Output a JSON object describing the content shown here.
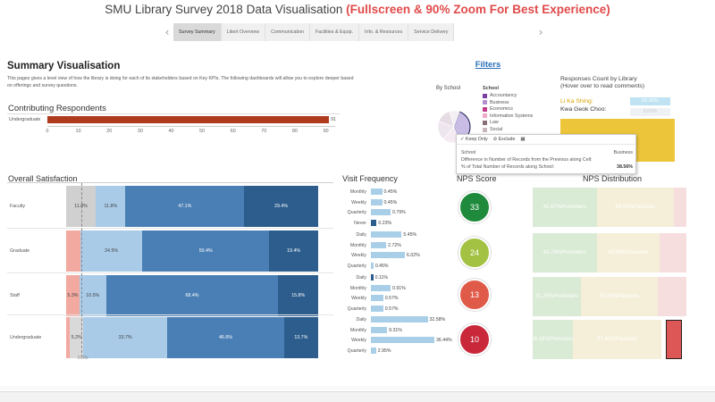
{
  "title": {
    "main": "SMU Library Survey 2018 Data Visualisation",
    "highlight": "(Fullscreen & 90% Zoom For Best Experience)"
  },
  "tabs": [
    {
      "label": "Survey Summary",
      "active": true
    },
    {
      "label": "Likert Overview",
      "active": false
    },
    {
      "label": "Communication",
      "active": false
    },
    {
      "label": "Facilities & Equip.",
      "active": false
    },
    {
      "label": "Info. & Resources",
      "active": false
    },
    {
      "label": "Service Delivery",
      "active": false
    }
  ],
  "nav": {
    "prev": "‹",
    "next": "›"
  },
  "summary": {
    "title": "Summary Visualisation",
    "description": "This pages gives a level view of how the library is doing for each of its stakeholders based on Key KPIs. The following dashboards will allow you to explore deeper based on offerings and survey questions."
  },
  "filters_label": "Filters",
  "by_school": {
    "label": "By School",
    "legend_title": "School",
    "legend": [
      {
        "name": "Accountancy",
        "color": "#7a3fa0"
      },
      {
        "name": "Business",
        "color": "#b48fd0"
      },
      {
        "name": "Economics",
        "color": "#c03a8a"
      },
      {
        "name": "Information Systems",
        "color": "#f0a9c8"
      },
      {
        "name": "Law",
        "color": "#8a6d78"
      },
      {
        "name": "Social",
        "color": "#c9b6bd"
      }
    ]
  },
  "responses": {
    "title": "Responses Count by Library",
    "subtitle": "(Hover over to read comments)",
    "names": [
      "Li Ka Shing:",
      "Kwa Geok Choo:"
    ],
    "values": [
      "62.00%",
      "8.00%"
    ]
  },
  "tooltip": {
    "keep_only": "✓ Keep Only",
    "exclude": "⊘ Exclude",
    "grid_icon": "▦",
    "rows": [
      {
        "label": "School",
        "value": "Business"
      },
      {
        "label": "Difference in Number of Records from the Previous along Cell:",
        "value": ""
      },
      {
        "label": "% of Total Number of Records along School:",
        "value": "38.56%"
      }
    ]
  },
  "sections": {
    "contributing": "Contributing Respondents",
    "overall": "Overall Satisfaction",
    "visit": "Visit Frequency",
    "nps_score": "NPS Score",
    "nps_dist": "NPS Distribution"
  },
  "chart_data": [
    {
      "id": "contributing",
      "type": "bar",
      "title": "Contributing Respondents",
      "categories": [
        "Undergraduate"
      ],
      "values": [
        91
      ],
      "value_labels": [
        "91"
      ],
      "xlim": [
        0,
        93
      ],
      "ticks": [
        "0",
        "10",
        "20",
        "30",
        "40",
        "50",
        "60",
        "70",
        "80",
        "90"
      ],
      "colors": {
        "bar": "#b03a1e"
      }
    },
    {
      "id": "overall",
      "type": "bar",
      "title": "Overall Satisfaction",
      "stacked": true,
      "categories": [
        "Faculty",
        "Graduate",
        "Staff",
        "Undergraduate"
      ],
      "segments": [
        [
          {
            "v": 11.8,
            "label": "11.8%",
            "c": "#d0d0d0",
            "dark": true
          },
          {
            "v": 11.8,
            "label": "11.8%",
            "c": "#a9cbe8",
            "dark": true
          },
          {
            "v": 47.1,
            "label": "47.1%",
            "c": "#4a7fb5"
          },
          {
            "v": 29.4,
            "label": "29.4%",
            "c": "#2c5d8d"
          }
        ],
        [
          {
            "v": 5.7,
            "label": "",
            "c": "#f2aaa0"
          },
          {
            "v": 24.5,
            "label": "24.5%",
            "c": "#a9cbe8",
            "dark": true
          },
          {
            "v": 50.4,
            "label": "50.4%",
            "c": "#4a7fb5"
          },
          {
            "v": 19.4,
            "label": "19.4%",
            "c": "#2c5d8d"
          }
        ],
        [
          {
            "v": 5.3,
            "label": "5.3%",
            "c": "#f2aaa0",
            "dark": true
          },
          {
            "v": 10.5,
            "label": "10.5%",
            "c": "#a9cbe8",
            "dark": true
          },
          {
            "v": 68.4,
            "label": "68.4%",
            "c": "#4a7fb5"
          },
          {
            "v": 15.8,
            "label": "15.8%",
            "c": "#2c5d8d"
          }
        ],
        [
          {
            "v": 1.6,
            "label": "",
            "c": "#f2aaa0"
          },
          {
            "v": 5.2,
            "label": "5.2%",
            "c": "#d9d9d9",
            "dark": true
          },
          {
            "v": 33.7,
            "label": "33.7%",
            "c": "#a9cbe8",
            "dark": true
          },
          {
            "v": 46.6,
            "label": "46.6%",
            "c": "#4a7fb5"
          },
          {
            "v": 13.7,
            "label": "13.7%",
            "c": "#2c5d8d"
          }
        ]
      ],
      "reference_label": "0.0%"
    },
    {
      "id": "visit",
      "type": "bar",
      "title": "Visit Frequency",
      "groups": [
        {
          "rows": [
            {
              "label": "Monthly",
              "v": 0.45
            },
            {
              "label": "Weekly",
              "v": 0.45
            },
            {
              "label": "Quarterly",
              "v": 0.79
            },
            {
              "label": "Never",
              "v": 0.23
            }
          ]
        },
        {
          "rows": [
            {
              "label": "Daily",
              "v": 5.45
            },
            {
              "label": "Monthly",
              "v": 2.72
            },
            {
              "label": "Weekly",
              "v": 6.02
            },
            {
              "label": "Quarterly",
              "v": 0.45
            }
          ]
        },
        {
          "rows": [
            {
              "label": "Daily",
              "v": 0.11
            },
            {
              "label": "Monthly",
              "v": 0.91
            },
            {
              "label": "Weekly",
              "v": 0.57
            },
            {
              "label": "Quarterly",
              "v": 0.57
            }
          ]
        },
        {
          "rows": [
            {
              "label": "Daily",
              "v": 32.58
            },
            {
              "label": "Monthly",
              "v": 9.31
            },
            {
              "label": "Weekly",
              "v": 36.44
            },
            {
              "label": "Quarterly",
              "v": 2.95
            }
          ]
        }
      ],
      "value_suffix": "%"
    },
    {
      "id": "nps_score",
      "type": "scatter",
      "title": "NPS Score",
      "categories": [
        "Faculty",
        "Graduate",
        "Staff",
        "Undergraduate"
      ],
      "values": [
        33,
        24,
        13,
        10
      ],
      "colors": [
        "#1f8a3c",
        "#a3c244",
        "#e05a4a",
        "#c8283a"
      ]
    },
    {
      "id": "nps_dist",
      "type": "bar",
      "title": "NPS Distribution",
      "stacked": true,
      "categories": [
        "Faculty",
        "Graduate",
        "Staff",
        "Undergraduate"
      ],
      "rows": [
        [
          {
            "v": 41.67,
            "label": "41.67%",
            "name": "Promoters",
            "c": "#d9ead5"
          },
          {
            "v": 50.0,
            "label": "50.00%",
            "name": "Passives",
            "c": "#f5efd9"
          },
          {
            "v": 8.33,
            "label": "",
            "name": "",
            "c": "#f7dede"
          }
        ],
        [
          {
            "v": 41.78,
            "label": "41.78%",
            "name": "Promoters",
            "c": "#d9ead5"
          },
          {
            "v": 40.86,
            "label": "40.86%",
            "name": "Passives",
            "c": "#f5efd9"
          },
          {
            "v": 17.36,
            "label": "",
            "name": "",
            "c": "#f7dede"
          }
        ],
        [
          {
            "v": 31.25,
            "label": "31.25%",
            "name": "Promoters",
            "c": "#d9ead5"
          },
          {
            "v": 50.0,
            "label": "50.00%",
            "name": "Passives",
            "c": "#f5efd9"
          },
          {
            "v": 18.75,
            "label": "",
            "name": "",
            "c": "#f7dede"
          }
        ],
        [
          {
            "v": 26.16,
            "label": "26.16%",
            "name": "Promoters",
            "c": "#d9ead5"
          },
          {
            "v": 57.65,
            "label": "57.65%",
            "name": "Passives",
            "c": "#f5efd9"
          },
          {
            "v": 16.19,
            "label": "",
            "name": "",
            "c": "#dd5757",
            "selected": true
          }
        ]
      ]
    }
  ]
}
